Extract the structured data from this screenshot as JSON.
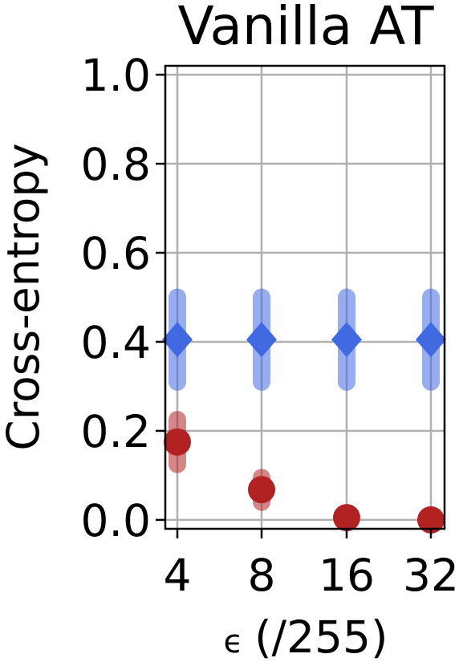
{
  "chart_data": {
    "type": "scatter",
    "title": "Vanilla AT",
    "xlabel_symbol": "ϵ",
    "xlabel_unit": "(/255)",
    "ylabel": "Cross-entropy",
    "categories": [
      "4",
      "8",
      "16",
      "32"
    ],
    "ylim": [
      -0.02,
      1.02
    ],
    "yticks": [
      "0.0",
      "0.2",
      "0.4",
      "0.6",
      "0.8",
      "1.0"
    ],
    "grid": true,
    "series": [
      {
        "marker": "diamond",
        "color": "#4169e1",
        "error_color": "#4169e1",
        "values": [
          0.405,
          0.405,
          0.405,
          0.405
        ],
        "error_low": [
          0.31,
          0.31,
          0.31,
          0.31
        ],
        "error_high": [
          0.5,
          0.5,
          0.5,
          0.5
        ]
      },
      {
        "marker": "circle",
        "color": "#b22222",
        "error_color": "#b22222",
        "values": [
          0.175,
          0.068,
          0.005,
          0.0
        ],
        "error_low": [
          0.125,
          0.04,
          0.0,
          0.0
        ],
        "error_high": [
          0.225,
          0.095,
          0.008,
          0.002
        ]
      }
    ]
  }
}
